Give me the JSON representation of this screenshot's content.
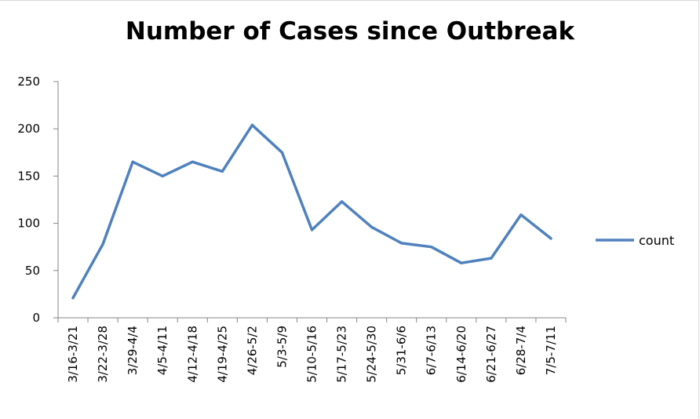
{
  "chart_data": {
    "type": "line",
    "title": "Number of Cases since Outbreak",
    "xlabel": "",
    "ylabel": "",
    "categories": [
      "3/16-3/21",
      "3/22-3/28",
      "3/29-4/4",
      "4/5-4/11",
      "4/12-4/18",
      "4/19-4/25",
      "4/26-5/2",
      "5/3-5/9",
      "5/10-5/16",
      "5/17-5/23",
      "5/24-5/30",
      "5/31-6/6",
      "6/7-6/13",
      "6/14-6/20",
      "6/21-6/27",
      "6/28-7/4",
      "7/5-7/11"
    ],
    "series": [
      {
        "name": "count",
        "color": "#4f81bd",
        "values": [
          21,
          78,
          165,
          150,
          165,
          155,
          204,
          175,
          93,
          123,
          96,
          79,
          75,
          58,
          63,
          109,
          84
        ]
      }
    ],
    "ylim": [
      0,
      250
    ],
    "yticks": [
      "0",
      "50",
      "100",
      "150",
      "200",
      "250"
    ],
    "grid": false,
    "legend_position": "right"
  }
}
